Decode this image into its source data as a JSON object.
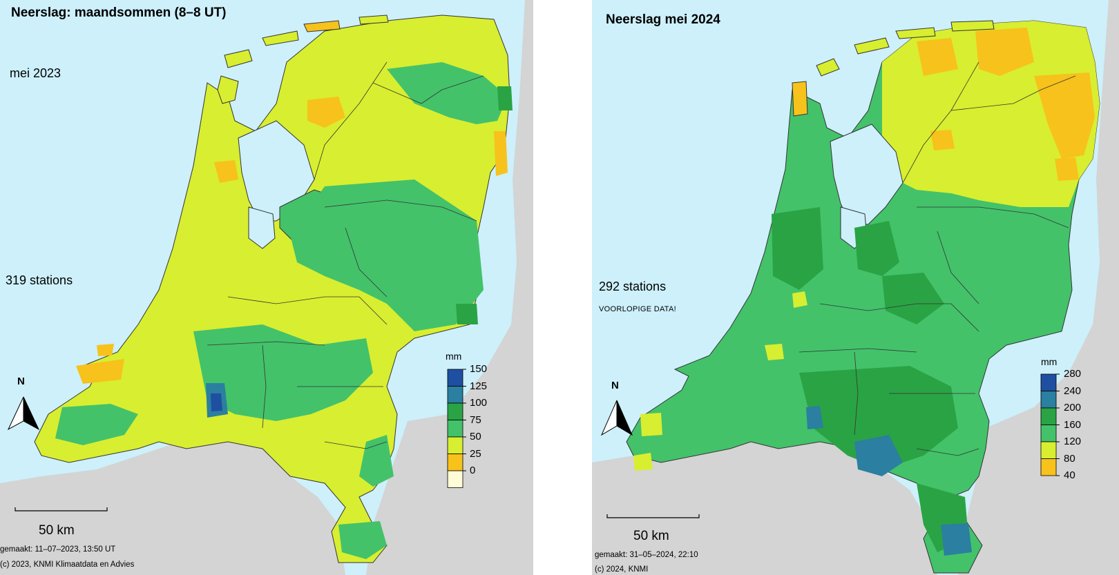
{
  "left": {
    "title": "Neerslag: maandsommen (8–8 UT)",
    "subtitle": "mei 2023",
    "stations": "319 stations",
    "scale_label": "50 km",
    "made": "gemaakt: 11–07–2023, 13:50 UT",
    "copyright": "(c) 2023, KNMI Klimaatdata en Advies",
    "north": "N",
    "legend": {
      "unit": "mm",
      "ticks": [
        "150",
        "125",
        "100",
        "75",
        "50",
        "25",
        "0"
      ],
      "colors": [
        "#1f4fa0",
        "#2b7fa0",
        "#2aa344",
        "#43c26a",
        "#d8ee30",
        "#f7c21b",
        "#fffbd6"
      ]
    }
  },
  "right": {
    "title": "Neerslag mei 2024",
    "stations": "292 stations",
    "notice": "VOORLOPIGE DATA!",
    "scale_label": "50 km",
    "made": "gemaakt: 31–05–2024, 22:10",
    "copyright": "(c) 2024, KNMI",
    "north": "N",
    "legend": {
      "unit": "mm",
      "ticks": [
        "280",
        "240",
        "200",
        "160",
        "120",
        "80",
        "40"
      ],
      "colors": [
        "#1f4fa0",
        "#2b7fa0",
        "#2aa344",
        "#43c26a",
        "#d8ee30",
        "#f7c21b"
      ]
    }
  },
  "colors": {
    "sea": "#cdf0fb",
    "land_grey": "#d4d4d4",
    "yellow": "#d8ee30",
    "orange": "#f7c21b",
    "green_light": "#43c26a",
    "green": "#2aa344",
    "teal": "#2b7fa0",
    "blue": "#1f4fa0"
  }
}
